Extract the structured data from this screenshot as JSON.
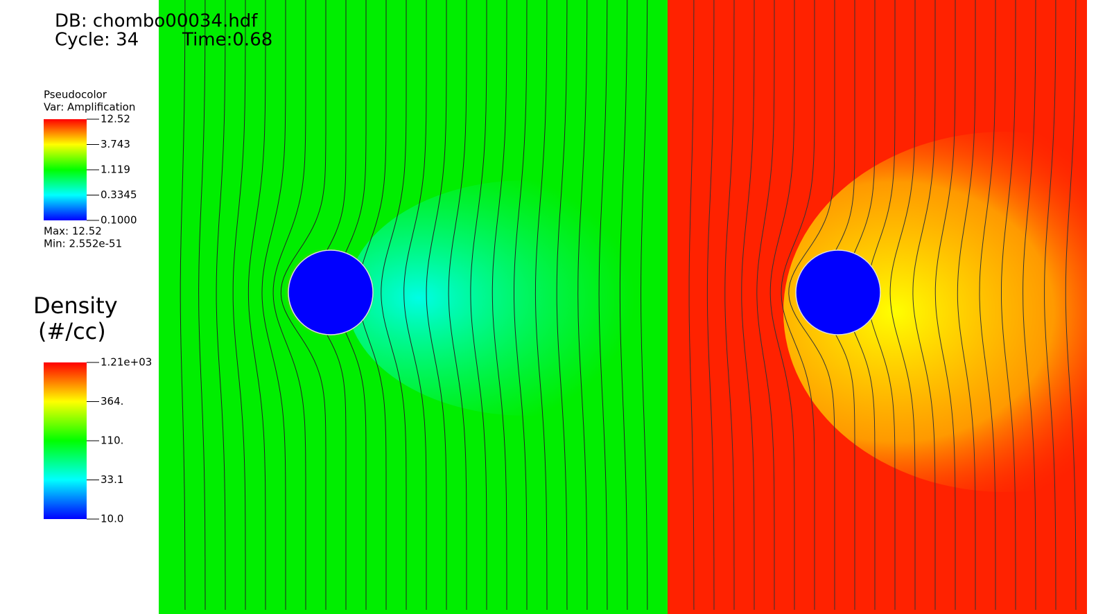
{
  "header": {
    "database": "DB: chombo00034.hdf",
    "cycle": "Cycle: 34",
    "time": "Time:0.68"
  },
  "legends": [
    {
      "title": "Pseudocolor",
      "variable": "Var: Amplification",
      "ticks": [
        "12.52",
        "3.743",
        "1.119",
        "0.3345",
        "0.1000"
      ],
      "max": "Max:  12.52",
      "min": "Min:  2.552e-51"
    },
    {
      "title": "Density",
      "units": "(#/cc)",
      "ticks": [
        "1.21e+03",
        "364.",
        "110.",
        "33.1",
        "10.0"
      ]
    }
  ]
}
